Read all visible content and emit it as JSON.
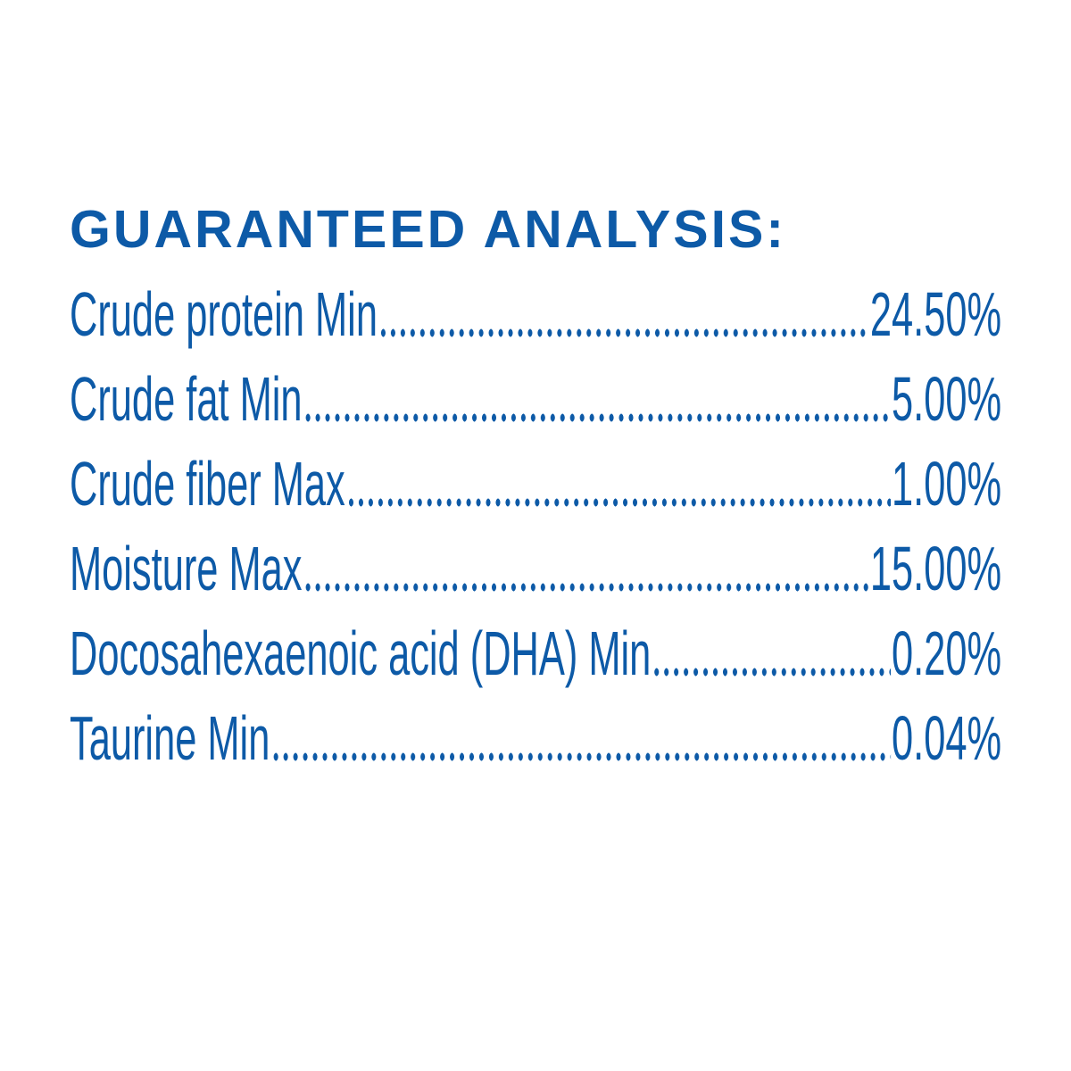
{
  "title": "GUARANTEED ANALYSIS:",
  "rows": [
    {
      "label": "Crude protein Min",
      "value": "24.50%"
    },
    {
      "label": "Crude fat Min",
      "value": "5.00%"
    },
    {
      "label": "Crude fiber Max",
      "value": "1.00%"
    },
    {
      "label": "Moisture Max",
      "value": "15.00%"
    },
    {
      "label": "Docosahexaenoic acid (DHA) Min",
      "value": "0.20%"
    },
    {
      "label": "Taurine Min",
      "value": "0.04%"
    }
  ]
}
